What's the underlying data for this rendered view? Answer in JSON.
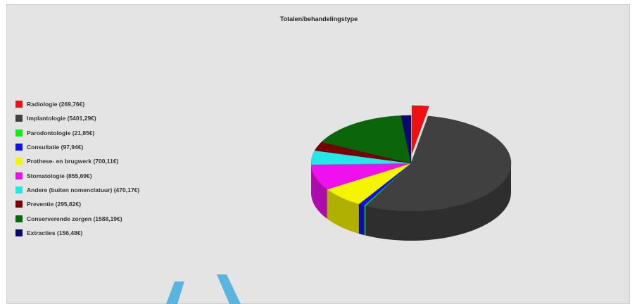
{
  "chart_data": {
    "type": "pie",
    "title": "Totalen/behandelingstype",
    "legend_position": "left",
    "three_d": true,
    "series": [
      {
        "label": "Radiologie (269,76€)",
        "value": 269.76,
        "color": "#ee1111"
      },
      {
        "label": "Implantologie (5401,29€)",
        "value": 5401.29,
        "color": "#404040"
      },
      {
        "label": "Parodontologie (21,85€)",
        "value": 21.85,
        "color": "#11ee11"
      },
      {
        "label": "Consultatie (97,94€)",
        "value": 97.94,
        "color": "#1111ee"
      },
      {
        "label": "Prothese- en brugwerk (700,11€)",
        "value": 700.11,
        "color": "#f5f500"
      },
      {
        "label": "Stomatologie (855,69€)",
        "value": 855.69,
        "color": "#ee11ee"
      },
      {
        "label": "Andere (buiten nomenclatuur) (470,17€)",
        "value": 470.17,
        "color": "#22e8e8"
      },
      {
        "label": "Preventie (295,82€)",
        "value": 295.82,
        "color": "#7a0000"
      },
      {
        "label": "Conserverende zorgen (1588,19€)",
        "value": 1588.19,
        "color": "#0b660b"
      },
      {
        "label": "Extracties (156,48€)",
        "value": 156.48,
        "color": "#0a0a6e"
      }
    ],
    "exploded": [
      "Radiologie (269,76€)"
    ]
  },
  "decor": {
    "watermark_color": "#5bb4dd"
  }
}
